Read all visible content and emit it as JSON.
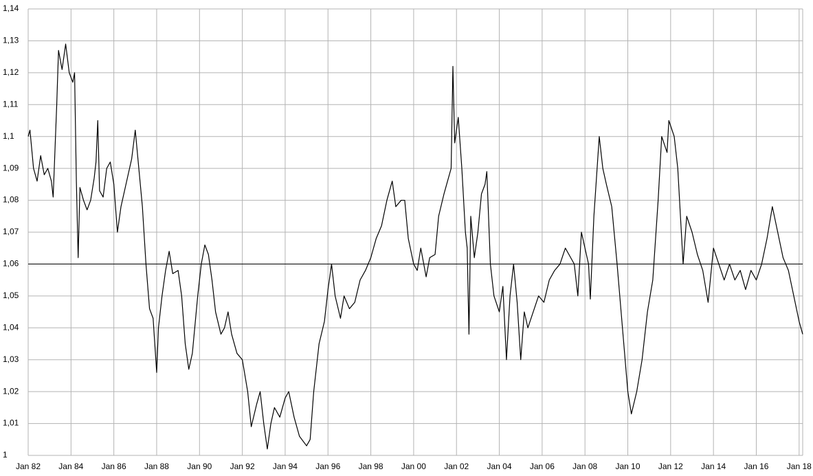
{
  "chart_data": {
    "type": "line",
    "x": [
      "1982-01",
      "1982-02",
      "1982-04",
      "1982-06",
      "1982-08",
      "1982-10",
      "1982-12",
      "1983-02",
      "1983-03",
      "1983-05",
      "1983-06",
      "1983-08",
      "1983-10",
      "1983-12",
      "1984-02",
      "1984-03",
      "1984-04",
      "1984-05",
      "1984-06",
      "1984-08",
      "1984-10",
      "1984-12",
      "1985-02",
      "1985-03",
      "1985-04",
      "1985-05",
      "1985-07",
      "1985-09",
      "1985-11",
      "1986-01",
      "1986-03",
      "1986-05",
      "1986-07",
      "1986-09",
      "1986-11",
      "1987-01",
      "1987-03",
      "1987-05",
      "1987-07",
      "1987-09",
      "1987-11",
      "1988-01",
      "1988-02",
      "1988-04",
      "1988-06",
      "1988-08",
      "1988-10",
      "1989-01",
      "1989-03",
      "1989-05",
      "1989-07",
      "1989-09",
      "1989-12",
      "1990-02",
      "1990-04",
      "1990-06",
      "1990-08",
      "1990-10",
      "1991-01",
      "1991-03",
      "1991-05",
      "1991-07",
      "1991-10",
      "1992-01",
      "1992-04",
      "1992-06",
      "1992-09",
      "1992-11",
      "1993-01",
      "1993-03",
      "1993-05",
      "1993-07",
      "1993-10",
      "1994-01",
      "1994-03",
      "1994-06",
      "1994-09",
      "1995-01",
      "1995-03",
      "1995-05",
      "1995-08",
      "1995-11",
      "1996-01",
      "1996-03",
      "1996-05",
      "1996-08",
      "1996-10",
      "1997-01",
      "1997-04",
      "1997-07",
      "1997-10",
      "1998-01",
      "1998-04",
      "1998-07",
      "1998-10",
      "1999-01",
      "1999-03",
      "1999-06",
      "1999-08",
      "1999-10",
      "2000-01",
      "2000-03",
      "2000-05",
      "2000-08",
      "2000-10",
      "2001-01",
      "2001-03",
      "2001-06",
      "2001-08",
      "2001-10",
      "2001-11",
      "2001-12",
      "2002-02",
      "2002-04",
      "2002-06",
      "2002-07",
      "2002-08",
      "2002-09",
      "2002-11",
      "2003-01",
      "2003-03",
      "2003-05",
      "2003-06",
      "2003-08",
      "2003-10",
      "2004-01",
      "2004-03",
      "2004-05",
      "2004-07",
      "2004-09",
      "2004-11",
      "2005-01",
      "2005-03",
      "2005-05",
      "2005-08",
      "2005-11",
      "2006-02",
      "2006-05",
      "2006-08",
      "2006-11",
      "2007-02",
      "2007-05",
      "2007-07",
      "2007-09",
      "2007-11",
      "2008-01",
      "2008-03",
      "2008-04",
      "2008-06",
      "2008-09",
      "2008-11",
      "2009-01",
      "2009-04",
      "2009-07",
      "2009-10",
      "2010-01",
      "2010-03",
      "2010-06",
      "2010-09",
      "2010-12",
      "2011-03",
      "2011-06",
      "2011-08",
      "2011-11",
      "2011-12",
      "2012-03",
      "2012-05",
      "2012-07",
      "2012-08",
      "2012-10",
      "2013-01",
      "2013-04",
      "2013-07",
      "2013-10",
      "2014-01",
      "2014-04",
      "2014-07",
      "2014-10",
      "2015-01",
      "2015-04",
      "2015-07",
      "2015-10",
      "2016-01",
      "2016-04",
      "2016-07",
      "2016-10",
      "2017-01",
      "2017-04",
      "2017-07",
      "2017-10",
      "2018-01",
      "2018-03"
    ],
    "values": [
      1.1,
      1.102,
      1.09,
      1.086,
      1.094,
      1.088,
      1.09,
      1.086,
      1.081,
      1.11,
      1.127,
      1.121,
      1.129,
      1.12,
      1.117,
      1.12,
      1.086,
      1.062,
      1.084,
      1.08,
      1.077,
      1.08,
      1.087,
      1.092,
      1.105,
      1.083,
      1.081,
      1.09,
      1.092,
      1.085,
      1.07,
      1.078,
      1.083,
      1.088,
      1.093,
      1.102,
      1.09,
      1.078,
      1.06,
      1.046,
      1.043,
      1.026,
      1.04,
      1.05,
      1.058,
      1.064,
      1.057,
      1.058,
      1.05,
      1.035,
      1.027,
      1.032,
      1.05,
      1.06,
      1.066,
      1.063,
      1.055,
      1.045,
      1.038,
      1.04,
      1.045,
      1.038,
      1.032,
      1.03,
      1.02,
      1.009,
      1.016,
      1.02,
      1.01,
      1.002,
      1.01,
      1.015,
      1.012,
      1.018,
      1.02,
      1.012,
      1.006,
      1.003,
      1.005,
      1.02,
      1.035,
      1.042,
      1.052,
      1.06,
      1.05,
      1.043,
      1.05,
      1.046,
      1.048,
      1.055,
      1.058,
      1.062,
      1.068,
      1.072,
      1.08,
      1.086,
      1.078,
      1.08,
      1.08,
      1.068,
      1.06,
      1.058,
      1.065,
      1.056,
      1.062,
      1.063,
      1.075,
      1.082,
      1.086,
      1.09,
      1.122,
      1.098,
      1.106,
      1.09,
      1.07,
      1.065,
      1.038,
      1.075,
      1.062,
      1.07,
      1.082,
      1.085,
      1.089,
      1.06,
      1.05,
      1.045,
      1.053,
      1.03,
      1.05,
      1.06,
      1.048,
      1.03,
      1.045,
      1.04,
      1.045,
      1.05,
      1.048,
      1.055,
      1.058,
      1.06,
      1.065,
      1.062,
      1.06,
      1.05,
      1.07,
      1.065,
      1.06,
      1.049,
      1.075,
      1.1,
      1.09,
      1.085,
      1.078,
      1.06,
      1.04,
      1.02,
      1.013,
      1.02,
      1.03,
      1.045,
      1.055,
      1.08,
      1.1,
      1.095,
      1.105,
      1.1,
      1.09,
      1.07,
      1.06,
      1.075,
      1.07,
      1.063,
      1.058,
      1.048,
      1.065,
      1.06,
      1.055,
      1.06,
      1.055,
      1.058,
      1.052,
      1.058,
      1.055,
      1.06,
      1.068,
      1.078,
      1.07,
      1.062,
      1.058,
      1.05,
      1.042,
      1.038
    ],
    "color": "#000000",
    "reference_line": 1.06,
    "xlim": [
      "1982-01",
      "2018-03"
    ],
    "xticks": [
      {
        "value": "1982-01",
        "label": "Jan 82"
      },
      {
        "value": "1984-01",
        "label": "Jan 84"
      },
      {
        "value": "1986-01",
        "label": "Jan 86"
      },
      {
        "value": "1988-01",
        "label": "Jan 88"
      },
      {
        "value": "1990-01",
        "label": "Jan 90"
      },
      {
        "value": "1992-01",
        "label": "Jan 92"
      },
      {
        "value": "1994-01",
        "label": "Jan 94"
      },
      {
        "value": "1996-01",
        "label": "Jan 96"
      },
      {
        "value": "1998-01",
        "label": "Jan 98"
      },
      {
        "value": "2000-01",
        "label": "Jan 00"
      },
      {
        "value": "2002-01",
        "label": "Jan 02"
      },
      {
        "value": "2004-01",
        "label": "Jan 04"
      },
      {
        "value": "2006-01",
        "label": "Jan 06"
      },
      {
        "value": "2008-01",
        "label": "Jan 08"
      },
      {
        "value": "2010-01",
        "label": "Jan 10"
      },
      {
        "value": "2012-01",
        "label": "Jan 12"
      },
      {
        "value": "2014-01",
        "label": "Jan 14"
      },
      {
        "value": "2016-01",
        "label": "Jan 16"
      },
      {
        "value": "2018-01",
        "label": "Jan 18"
      }
    ],
    "ylim": [
      1,
      1.14
    ],
    "yticks": [
      1,
      {
        "value": 1.01,
        "label": "1,01"
      },
      {
        "value": 1.02,
        "label": "1,02"
      },
      {
        "value": 1.03,
        "label": "1,03"
      },
      {
        "value": 1.04,
        "label": "1,04"
      },
      {
        "value": 1.05,
        "label": "1,05"
      },
      {
        "value": 1.06,
        "label": "1,06"
      },
      {
        "value": 1.07,
        "label": "1,07"
      },
      {
        "value": 1.08,
        "label": "1,08"
      },
      {
        "value": 1.09,
        "label": "1,09"
      },
      {
        "value": 1.1,
        "label": "1,1"
      },
      {
        "value": 1.11,
        "label": "1,11"
      },
      {
        "value": 1.12,
        "label": "1,12"
      },
      {
        "value": 1.13,
        "label": "1,13"
      },
      {
        "value": 1.14,
        "label": "1,14"
      }
    ],
    "grid": true
  }
}
